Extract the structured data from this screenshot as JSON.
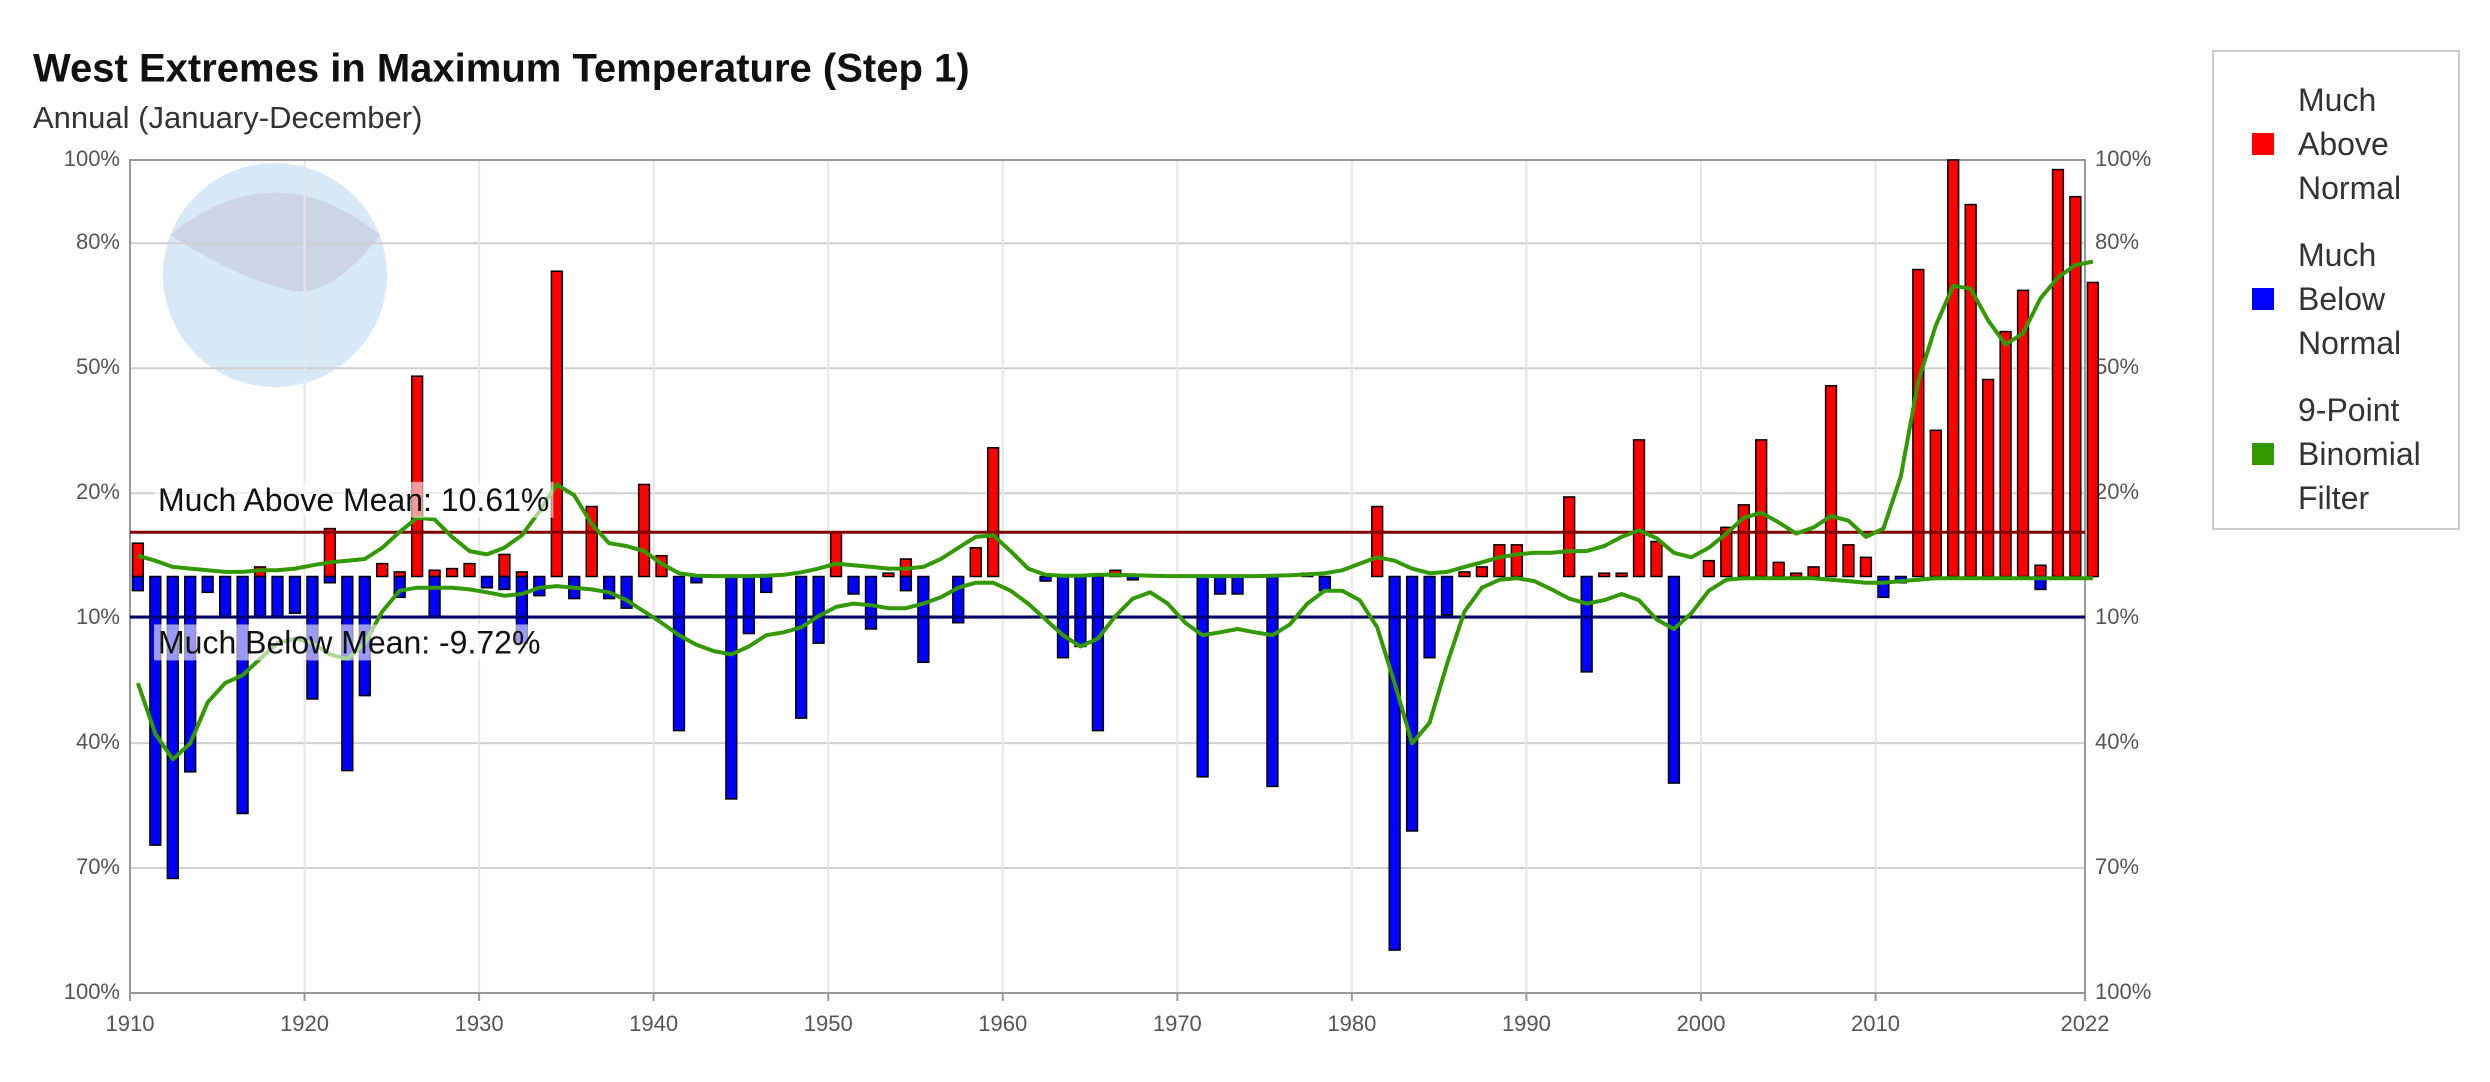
{
  "chart_data": {
    "type": "bar",
    "title": "West Extremes in Maximum Temperature (Step 1)",
    "subtitle": "Annual (January-December)",
    "x": [
      1910,
      1911,
      1912,
      1913,
      1914,
      1915,
      1916,
      1917,
      1918,
      1919,
      1920,
      1921,
      1922,
      1923,
      1924,
      1925,
      1926,
      1927,
      1928,
      1929,
      1930,
      1931,
      1932,
      1933,
      1934,
      1935,
      1936,
      1937,
      1938,
      1939,
      1940,
      1941,
      1942,
      1943,
      1944,
      1945,
      1946,
      1947,
      1948,
      1949,
      1950,
      1951,
      1952,
      1953,
      1954,
      1955,
      1956,
      1957,
      1958,
      1959,
      1960,
      1961,
      1962,
      1963,
      1964,
      1965,
      1966,
      1967,
      1968,
      1969,
      1970,
      1971,
      1972,
      1973,
      1974,
      1975,
      1976,
      1977,
      1978,
      1979,
      1980,
      1981,
      1982,
      1983,
      1984,
      1985,
      1986,
      1987,
      1988,
      1989,
      1990,
      1991,
      1992,
      1993,
      1994,
      1995,
      1996,
      1997,
      1998,
      1999,
      2000,
      2001,
      2002,
      2003,
      2004,
      2005,
      2006,
      2007,
      2008,
      2009,
      2010,
      2011,
      2012,
      2013,
      2014,
      2015,
      2016,
      2017,
      2018,
      2019,
      2020,
      2021,
      2022
    ],
    "xlim": [
      1910,
      2022
    ],
    "xticks": [
      1910,
      1920,
      1930,
      1940,
      1950,
      1960,
      1970,
      1980,
      1990,
      2000,
      2010,
      2022
    ],
    "ylim": [
      -100,
      100
    ],
    "yticks": [
      {
        "value": 100,
        "label": "100%"
      },
      {
        "value": 80,
        "label": "80%"
      },
      {
        "value": 50,
        "label": "50%"
      },
      {
        "value": 20,
        "label": "20%"
      },
      {
        "value": -10,
        "label": "10%"
      },
      {
        "value": -40,
        "label": "40%"
      },
      {
        "value": -70,
        "label": "70%"
      },
      {
        "value": -100,
        "label": "100%"
      }
    ],
    "grid": true,
    "legend": "right",
    "series": [
      {
        "name": "Much Above Normal",
        "color": "#ff0000",
        "values": [
          8.0,
          0,
          0,
          0,
          0,
          0,
          0,
          2.3,
          0,
          0,
          0,
          11.5,
          0,
          0,
          3.1,
          1.1,
          48.1,
          1.5,
          1.9,
          3.1,
          0,
          5.3,
          1.1,
          0,
          73.3,
          0,
          16.8,
          0,
          0,
          22.1,
          5.0,
          0,
          0,
          0,
          0,
          0,
          0,
          0,
          0,
          0,
          10.7,
          0,
          0,
          0.8,
          4.2,
          0,
          0,
          0,
          6.9,
          30.9,
          0,
          0,
          0,
          0,
          0,
          0,
          1.5,
          0,
          0,
          0,
          0,
          0,
          0,
          0,
          0,
          0,
          0,
          0.8,
          0,
          0,
          0,
          16.8,
          0,
          0,
          0,
          0,
          1.1,
          2.3,
          7.6,
          7.6,
          0,
          0,
          19.1,
          0,
          0.8,
          0.8,
          32.8,
          8.4,
          0,
          0,
          3.8,
          11.8,
          17.2,
          32.8,
          3.4,
          0.8,
          2.3,
          45.8,
          7.6,
          4.6,
          0,
          0,
          73.7,
          35.1,
          100,
          89.3,
          47.3,
          58.8,
          68.7,
          2.7,
          97.7,
          91.2,
          70.6
        ]
      },
      {
        "name": "Much Below Normal",
        "color": "#0000ff",
        "values": [
          -3.4,
          -64.5,
          -72.5,
          -46.9,
          -3.8,
          -9.5,
          -56.9,
          -9.5,
          -9.5,
          -8.8,
          -29.4,
          -1.5,
          -46.6,
          -28.6,
          0,
          -5.0,
          0,
          -9.5,
          0,
          0,
          -2.7,
          -3.1,
          -16.0,
          -4.6,
          0,
          -5.3,
          0,
          -5.3,
          -7.6,
          0,
          0,
          -37.0,
          -1.5,
          0,
          -53.4,
          -13.7,
          -3.8,
          0,
          -34.0,
          -16.0,
          0,
          -4.2,
          -12.6,
          0,
          -3.4,
          -20.6,
          0,
          -11.1,
          0,
          0,
          0,
          0,
          -1.1,
          -19.5,
          -16.8,
          -37.0,
          0,
          -0.8,
          0,
          0,
          0,
          -48.1,
          -4.2,
          -4.2,
          0,
          -50.4,
          0,
          0,
          -3.4,
          0,
          0,
          0,
          -89.7,
          -61.1,
          -19.5,
          -9.2,
          0,
          0,
          0,
          0,
          0,
          0,
          0,
          -22.9,
          0,
          0,
          0,
          0,
          -49.6,
          0,
          0,
          0,
          0,
          0,
          0,
          0,
          0,
          0,
          0,
          0,
          -5.0,
          -1.5,
          0,
          0,
          0,
          0,
          0,
          0,
          0,
          -3.1,
          0,
          0,
          0
        ]
      }
    ],
    "filter": {
      "name": "9-Point Binomial Filter",
      "color": "#339900",
      "above": [
        5.0,
        3.8,
        2.3,
        1.9,
        1.5,
        1.1,
        1.1,
        1.5,
        1.5,
        1.9,
        2.7,
        3.4,
        3.8,
        4.2,
        6.9,
        10.7,
        14.1,
        13.7,
        9.5,
        6.1,
        5.3,
        6.9,
        9.9,
        15.6,
        22.1,
        19.5,
        12.6,
        8.0,
        7.3,
        6.1,
        3.1,
        0.8,
        0.2,
        0.1,
        0.1,
        0.1,
        0.2,
        0.4,
        1.0,
        1.9,
        3.1,
        2.7,
        2.3,
        1.9,
        1.9,
        2.3,
        4.2,
        6.9,
        9.5,
        9.9,
        6.1,
        1.9,
        0.4,
        0.2,
        0.2,
        0.4,
        0.4,
        0.3,
        0.2,
        0.1,
        0.1,
        0.1,
        0.1,
        0.1,
        0.1,
        0.2,
        0.3,
        0.5,
        0.8,
        1.5,
        3.1,
        4.6,
        3.8,
        1.9,
        0.8,
        1.1,
        2.3,
        3.4,
        4.6,
        5.3,
        5.7,
        5.7,
        6.1,
        6.1,
        7.3,
        9.5,
        11.1,
        9.2,
        5.7,
        4.6,
        6.9,
        10.3,
        14.1,
        15.3,
        13.0,
        10.3,
        11.8,
        14.5,
        13.4,
        9.5,
        11.5,
        24.0,
        46.9,
        60.3,
        69.8,
        69.1,
        61.5,
        55.7,
        58.4,
        66.8,
        71.8,
        74.8,
        75.6
      ],
      "below": [
        -25.6,
        -37.8,
        -43.9,
        -40.1,
        -30.2,
        -25.6,
        -23.7,
        -19.8,
        -16.0,
        -14.9,
        -16.0,
        -18.7,
        -19.8,
        -16.0,
        -8.4,
        -3.4,
        -2.7,
        -2.7,
        -2.7,
        -3.1,
        -3.8,
        -4.6,
        -4.2,
        -2.7,
        -2.3,
        -2.7,
        -3.1,
        -3.8,
        -5.7,
        -8.4,
        -11.1,
        -14.1,
        -16.4,
        -17.9,
        -18.7,
        -16.8,
        -14.1,
        -13.4,
        -12.2,
        -9.5,
        -7.3,
        -6.5,
        -6.9,
        -7.6,
        -7.6,
        -6.5,
        -5.0,
        -2.7,
        -1.5,
        -1.5,
        -3.4,
        -6.5,
        -10.3,
        -14.1,
        -16.8,
        -14.9,
        -9.5,
        -5.3,
        -3.8,
        -6.5,
        -11.1,
        -14.1,
        -13.4,
        -12.6,
        -13.4,
        -14.1,
        -11.5,
        -6.5,
        -3.4,
        -3.4,
        -5.7,
        -12.2,
        -25.6,
        -40.1,
        -35.1,
        -21.0,
        -8.4,
        -2.7,
        -0.8,
        -0.4,
        -1.1,
        -3.1,
        -5.3,
        -6.5,
        -5.7,
        -4.2,
        -5.7,
        -10.3,
        -12.6,
        -8.8,
        -3.4,
        -0.8,
        -0.4,
        -0.4,
        -0.4,
        -0.4,
        -0.4,
        -0.8,
        -1.1,
        -1.5,
        -1.5,
        -1.1,
        -0.8,
        -0.4,
        -0.4,
        -0.4,
        -0.4,
        -0.4,
        -0.4,
        -0.4,
        -0.4,
        -0.4,
        -0.4
      ]
    },
    "mean_lines": [
      {
        "label": "Much Above Mean: 10.61%",
        "value": 10.61,
        "color": "#800000"
      },
      {
        "label": "Much Below Mean: -9.72%",
        "value": -9.72,
        "color": "#000066"
      }
    ]
  }
}
